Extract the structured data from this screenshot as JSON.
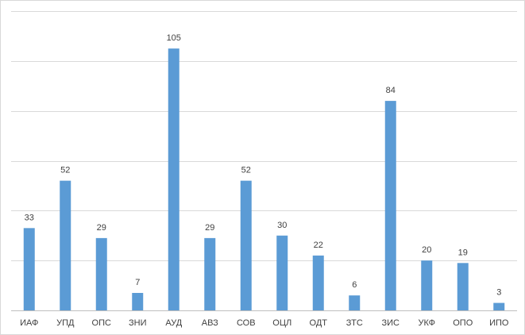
{
  "chart_data": {
    "type": "bar",
    "title": "",
    "xlabel": "",
    "ylabel": "",
    "ylim": [
      0,
      120
    ],
    "grid": true,
    "legend": "none",
    "bar_color": "#5b9bd5",
    "categories": [
      "ИАФ",
      "УПД",
      "ОПС",
      "ЗНИ",
      "АУД",
      "АВЗ",
      "СОВ",
      "ОЦЛ",
      "ОДТ",
      "ЗТС",
      "ЗИС",
      "УКФ",
      "ОПО",
      "ИПО"
    ],
    "values": [
      33,
      52,
      29,
      7,
      105,
      29,
      52,
      30,
      22,
      6,
      84,
      20,
      19,
      3
    ]
  }
}
